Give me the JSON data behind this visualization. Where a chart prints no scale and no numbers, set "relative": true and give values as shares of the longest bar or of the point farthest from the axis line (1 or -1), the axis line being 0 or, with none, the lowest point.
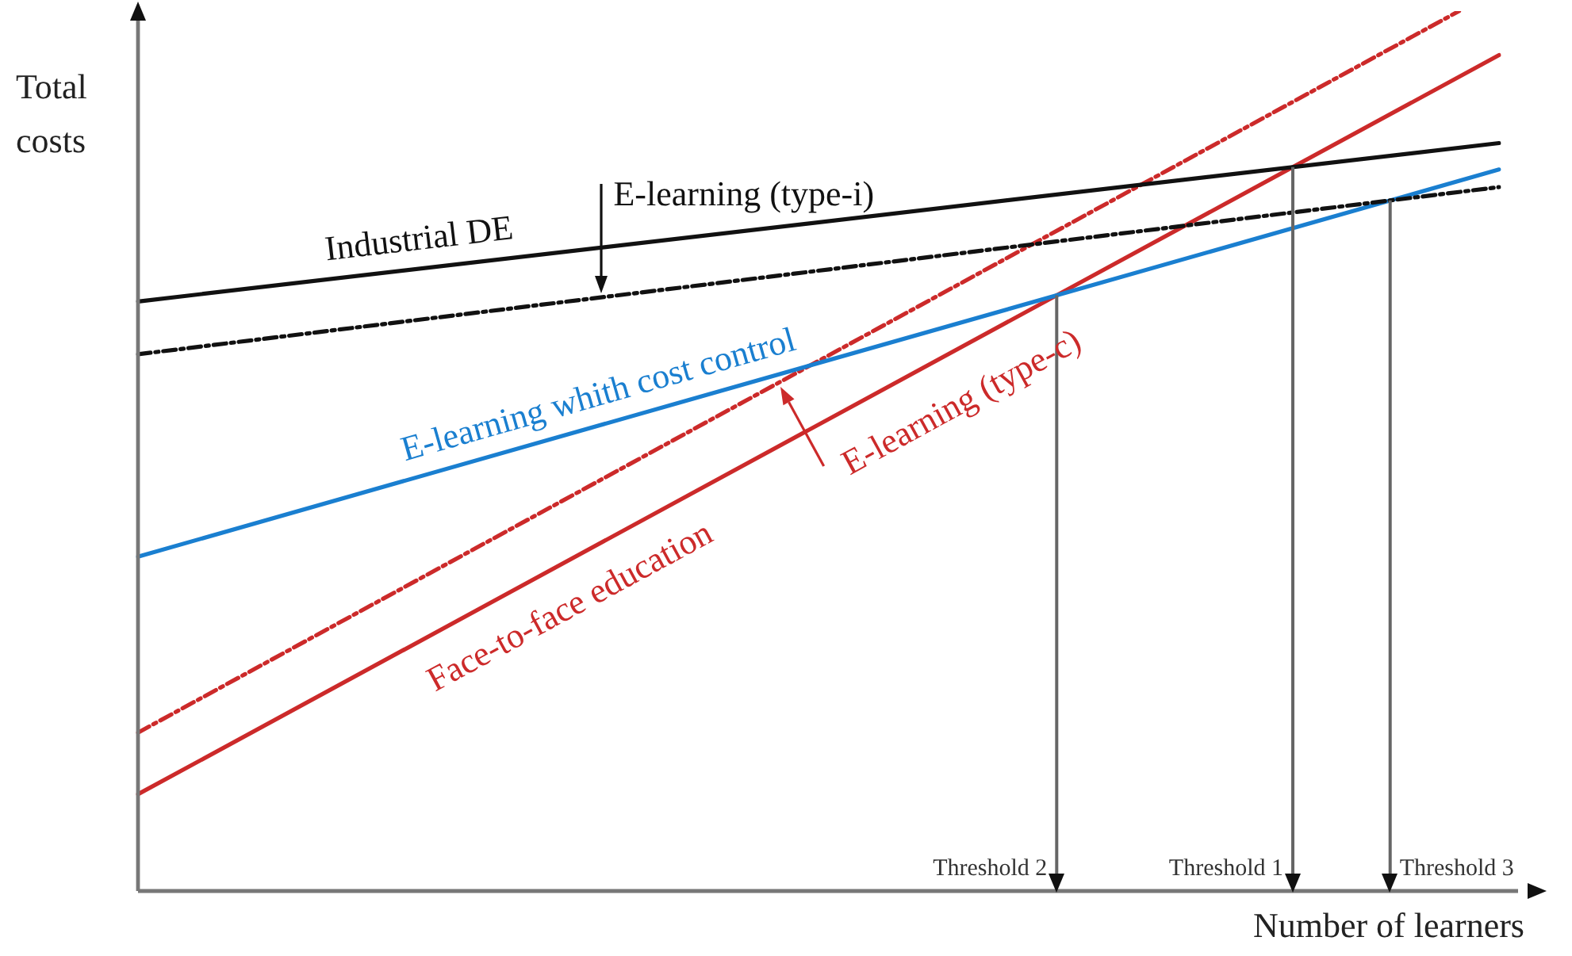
{
  "chart_data": {
    "type": "line",
    "relative": true,
    "xlabel": "Number of learners",
    "ylabel": "Total costs",
    "categories": [
      null,
      null,
      null,
      null,
      null,
      null,
      null,
      null,
      null,
      null,
      null,
      null,
      null,
      null,
      null,
      null,
      null,
      null,
      null,
      null,
      null,
      null,
      null,
      null,
      null,
      null,
      null,
      null,
      null,
      null,
      null,
      null,
      null,
      null,
      null
    ],
    "series": [
      {
        "name": "Industrial DE",
        "color": "#111111",
        "values": [
          0.67,
          null,
          null,
          null,
          null,
          null,
          null,
          null,
          null,
          null,
          null,
          null,
          null,
          null,
          null,
          null,
          null,
          null,
          null,
          null,
          null,
          null,
          null,
          null,
          null,
          null,
          null,
          null,
          null,
          null,
          null,
          null,
          null,
          null,
          0.85
        ],
        "line_style": "solid"
      },
      {
        "name": "E-learning (type-i)",
        "color": "#111111",
        "values": [
          0.61,
          null,
          null,
          null,
          null,
          null,
          null,
          null,
          null,
          null,
          null,
          null,
          null,
          null,
          null,
          null,
          null,
          null,
          null,
          null,
          null,
          null,
          null,
          null,
          null,
          null,
          null,
          null,
          null,
          null,
          null,
          null,
          null,
          null,
          0.8
        ],
        "line_style": "dashdot"
      },
      {
        "name": "E-learning whith cost control",
        "color": "#1a7fd0",
        "values": [
          0.38,
          null,
          null,
          null,
          null,
          null,
          null,
          null,
          null,
          null,
          null,
          null,
          null,
          null,
          null,
          null,
          null,
          null,
          null,
          null,
          null,
          null,
          null,
          null,
          null,
          null,
          null,
          null,
          null,
          null,
          null,
          null,
          null,
          null,
          0.82
        ],
        "line_style": "solid"
      },
      {
        "name": "Face-to-face education",
        "color": "#cc2a2a",
        "values": [
          0.11,
          null,
          null,
          null,
          null,
          null,
          null,
          null,
          null,
          null,
          null,
          null,
          null,
          null,
          null,
          null,
          null,
          null,
          null,
          null,
          null,
          null,
          null,
          null,
          null,
          null,
          null,
          null,
          null,
          null,
          null,
          null,
          null,
          null,
          0.95
        ],
        "line_style": "solid"
      },
      {
        "name": "E-learning (type-c)",
        "color": "#cc2a2a",
        "values": [
          0.18,
          null,
          null,
          null,
          null,
          null,
          null,
          null,
          null,
          null,
          null,
          null,
          null,
          null,
          null,
          null,
          null,
          null,
          null,
          null,
          null,
          null,
          null,
          null,
          null,
          null,
          null,
          null,
          null,
          null,
          null,
          null,
          null,
          1,
          null
        ],
        "line_style": "dashdot"
      }
    ],
    "annotations": [
      "Threshold 2",
      "Threshold 1",
      "Threshold 3"
    ]
  }
}
